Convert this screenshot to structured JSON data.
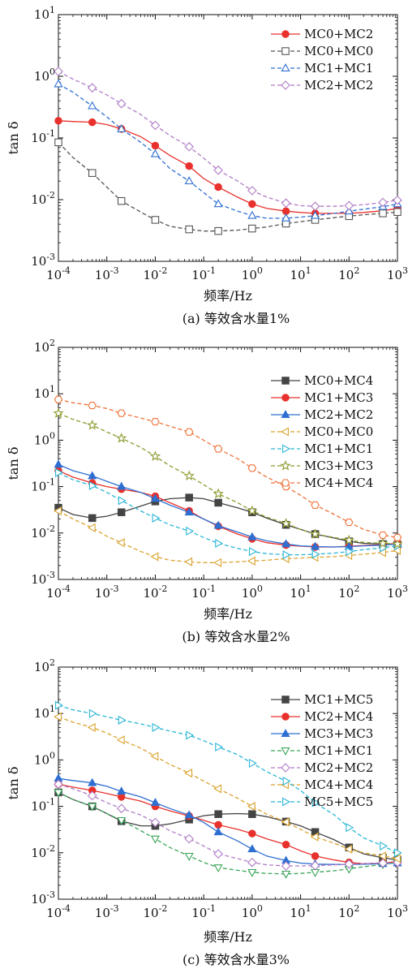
{
  "chart_data": [
    {
      "type": "line",
      "caption": "(a)  等效含水量1%",
      "xlabel": "频率/Hz",
      "ylabel": "tan δ",
      "xscale": "log",
      "yscale": "log",
      "xlim": [
        0.0001,
        1000
      ],
      "ylim": [
        0.001,
        10
      ],
      "legend_position": "top-right",
      "series": [
        {
          "name": "MC0+MC2",
          "color": "#e8312d",
          "dash": "solid",
          "marker": "circle-filled",
          "x": [
            0.0001,
            0.0002,
            0.0005,
            0.001,
            0.002,
            0.005,
            0.01,
            0.02,
            0.05,
            0.1,
            0.2,
            0.5,
            1,
            2,
            5,
            10,
            20,
            50,
            100,
            200,
            500,
            1000
          ],
          "y": [
            0.19,
            0.185,
            0.18,
            0.165,
            0.14,
            0.105,
            0.075,
            0.052,
            0.035,
            0.022,
            0.016,
            0.011,
            0.0085,
            0.0072,
            0.0065,
            0.0062,
            0.006,
            0.006,
            0.006,
            0.0062,
            0.0066,
            0.0072
          ]
        },
        {
          "name": "MC0+MC0",
          "color": "#555555",
          "dash": "dashed",
          "marker": "square-open",
          "x": [
            0.0001,
            0.0002,
            0.0005,
            0.001,
            0.002,
            0.005,
            0.01,
            0.02,
            0.05,
            0.1,
            0.2,
            0.5,
            1,
            2,
            5,
            10,
            20,
            50,
            100,
            200,
            500,
            1000
          ],
          "y": [
            0.085,
            0.048,
            0.027,
            0.016,
            0.0095,
            0.0063,
            0.0047,
            0.0037,
            0.0033,
            0.0031,
            0.0031,
            0.0032,
            0.0034,
            0.0036,
            0.0041,
            0.0044,
            0.0047,
            0.0051,
            0.0054,
            0.0057,
            0.006,
            0.0063
          ]
        },
        {
          "name": "MC1+MC1",
          "color": "#2e6fd1",
          "dash": "dashed",
          "marker": "triangle-open",
          "x": [
            0.0001,
            0.0002,
            0.0005,
            0.001,
            0.002,
            0.005,
            0.01,
            0.02,
            0.05,
            0.1,
            0.2,
            0.5,
            1,
            2,
            5,
            10,
            20,
            50,
            100,
            200,
            500,
            1000
          ],
          "y": [
            0.75,
            0.55,
            0.33,
            0.22,
            0.14,
            0.085,
            0.055,
            0.032,
            0.02,
            0.013,
            0.0085,
            0.0065,
            0.0055,
            0.005,
            0.005,
            0.0052,
            0.0055,
            0.006,
            0.0065,
            0.007,
            0.0077,
            0.0085
          ]
        },
        {
          "name": "MC2+MC2",
          "color": "#b07cc6",
          "dash": "dashed",
          "marker": "diamond-open",
          "x": [
            0.0001,
            0.0002,
            0.0005,
            0.001,
            0.002,
            0.005,
            0.01,
            0.02,
            0.05,
            0.1,
            0.2,
            0.5,
            1,
            2,
            5,
            10,
            20,
            50,
            100,
            200,
            500,
            1000
          ],
          "y": [
            1.2,
            0.9,
            0.65,
            0.5,
            0.36,
            0.24,
            0.16,
            0.11,
            0.072,
            0.047,
            0.03,
            0.02,
            0.014,
            0.011,
            0.0088,
            0.008,
            0.0078,
            0.0078,
            0.008,
            0.0083,
            0.009,
            0.0098
          ]
        }
      ]
    },
    {
      "type": "line",
      "caption": "(b)  等效含水量2%",
      "xlabel": "频率/Hz",
      "ylabel": "tan δ",
      "xscale": "log",
      "yscale": "log",
      "xlim": [
        0.0001,
        1000
      ],
      "ylim": [
        0.001,
        100
      ],
      "legend_position": "top-right",
      "series": [
        {
          "name": "MC0+MC4",
          "color": "#444444",
          "dash": "solid",
          "marker": "square-filled",
          "x": [
            0.0001,
            0.0002,
            0.0005,
            0.001,
            0.002,
            0.005,
            0.01,
            0.02,
            0.05,
            0.1,
            0.2,
            0.5,
            1,
            2,
            5,
            10,
            20,
            50,
            100,
            200,
            500,
            1000
          ],
          "y": [
            0.035,
            0.025,
            0.021,
            0.023,
            0.028,
            0.038,
            0.048,
            0.055,
            0.058,
            0.055,
            0.045,
            0.035,
            0.028,
            0.021,
            0.015,
            0.012,
            0.0095,
            0.0078,
            0.0066,
            0.006,
            0.0058,
            0.0057
          ]
        },
        {
          "name": "MC1+MC3",
          "color": "#e8312d",
          "dash": "solid",
          "marker": "circle-filled",
          "x": [
            0.0001,
            0.0002,
            0.0005,
            0.001,
            0.002,
            0.005,
            0.01,
            0.02,
            0.05,
            0.1,
            0.2,
            0.5,
            1,
            2,
            5,
            10,
            20,
            50,
            100,
            200,
            500,
            1000
          ],
          "y": [
            0.22,
            0.16,
            0.12,
            0.1,
            0.088,
            0.075,
            0.062,
            0.045,
            0.03,
            0.02,
            0.014,
            0.0095,
            0.0075,
            0.0062,
            0.0055,
            0.0052,
            0.005,
            0.005,
            0.0052,
            0.0054,
            0.0056,
            0.006
          ]
        },
        {
          "name": "MC2+MC2",
          "color": "#2e6fd1",
          "dash": "solid",
          "marker": "triangle-filled",
          "x": [
            0.0001,
            0.0002,
            0.0005,
            0.001,
            0.002,
            0.005,
            0.01,
            0.02,
            0.05,
            0.1,
            0.2,
            0.5,
            1,
            2,
            5,
            10,
            20,
            50,
            100,
            200,
            500,
            1000
          ],
          "y": [
            0.3,
            0.22,
            0.17,
            0.13,
            0.1,
            0.075,
            0.055,
            0.04,
            0.028,
            0.02,
            0.0145,
            0.0105,
            0.0082,
            0.0068,
            0.0058,
            0.0053,
            0.0051,
            0.005,
            0.0051,
            0.0053,
            0.0055,
            0.0058
          ]
        },
        {
          "name": "MC0+MC0",
          "color": "#d9a32e",
          "dash": "dashed",
          "marker": "triangle-left-open",
          "x": [
            0.0001,
            0.0002,
            0.0005,
            0.001,
            0.002,
            0.005,
            0.01,
            0.02,
            0.05,
            0.1,
            0.2,
            0.5,
            1,
            2,
            5,
            10,
            20,
            50,
            100,
            200,
            500,
            1000
          ],
          "y": [
            0.03,
            0.02,
            0.013,
            0.0085,
            0.0062,
            0.004,
            0.0031,
            0.0026,
            0.0024,
            0.0023,
            0.0023,
            0.0024,
            0.0025,
            0.0026,
            0.0028,
            0.0029,
            0.003,
            0.0031,
            0.0033,
            0.0035,
            0.0038,
            0.0042
          ]
        },
        {
          "name": "MC1+MC1",
          "color": "#2bb6d6",
          "dash": "dashed",
          "marker": "triangle-right-open",
          "x": [
            0.0001,
            0.0002,
            0.0005,
            0.001,
            0.002,
            0.005,
            0.01,
            0.02,
            0.05,
            0.1,
            0.2,
            0.5,
            1,
            2,
            5,
            10,
            20,
            50,
            100,
            200,
            500,
            1000
          ],
          "y": [
            0.2,
            0.14,
            0.105,
            0.075,
            0.05,
            0.03,
            0.021,
            0.015,
            0.011,
            0.008,
            0.006,
            0.0047,
            0.004,
            0.0036,
            0.0034,
            0.0034,
            0.0035,
            0.0037,
            0.004,
            0.0044,
            0.0048,
            0.0053
          ]
        },
        {
          "name": "MC3+MC3",
          "color": "#8f9a2f",
          "dash": "dashed",
          "marker": "star-open",
          "x": [
            0.0001,
            0.0002,
            0.0005,
            0.001,
            0.002,
            0.005,
            0.01,
            0.02,
            0.05,
            0.1,
            0.2,
            0.5,
            1,
            2,
            5,
            10,
            20,
            50,
            100,
            200,
            500,
            1000
          ],
          "y": [
            3.8,
            2.8,
            2.1,
            1.5,
            1.1,
            0.7,
            0.45,
            0.28,
            0.17,
            0.11,
            0.07,
            0.045,
            0.03,
            0.022,
            0.016,
            0.012,
            0.0095,
            0.008,
            0.007,
            0.0063,
            0.006,
            0.0058
          ]
        },
        {
          "name": "MC4+MC4",
          "color": "#ee7238",
          "dash": "dashed",
          "marker": "hexagon-open",
          "x": [
            0.0001,
            0.0002,
            0.0005,
            0.001,
            0.002,
            0.005,
            0.01,
            0.02,
            0.05,
            0.1,
            0.2,
            0.5,
            1,
            2,
            5,
            10,
            20,
            50,
            100,
            200,
            500,
            1000
          ],
          "y": [
            7.5,
            6.4,
            5.6,
            4.8,
            3.8,
            3.0,
            2.5,
            2.0,
            1.5,
            1.0,
            0.65,
            0.4,
            0.25,
            0.16,
            0.1,
            0.065,
            0.04,
            0.025,
            0.017,
            0.012,
            0.009,
            0.008
          ]
        }
      ]
    },
    {
      "type": "line",
      "caption": "(c)  等效含水量3%",
      "xlabel": "频率/Hz",
      "ylabel": "tan δ",
      "xscale": "log",
      "yscale": "log",
      "xlim": [
        0.0001,
        1000
      ],
      "ylim": [
        0.001,
        100
      ],
      "legend_position": "top-right",
      "series": [
        {
          "name": "MC1+MC5",
          "color": "#444444",
          "dash": "solid",
          "marker": "square-filled",
          "x": [
            0.0001,
            0.0002,
            0.0005,
            0.001,
            0.002,
            0.005,
            0.01,
            0.02,
            0.05,
            0.1,
            0.2,
            0.5,
            1,
            2,
            5,
            10,
            20,
            50,
            100,
            200,
            500,
            1000
          ],
          "y": [
            0.2,
            0.14,
            0.1,
            0.07,
            0.048,
            0.038,
            0.038,
            0.042,
            0.052,
            0.063,
            0.068,
            0.07,
            0.068,
            0.06,
            0.047,
            0.038,
            0.028,
            0.019,
            0.013,
            0.0095,
            0.0078,
            0.007
          ]
        },
        {
          "name": "MC2+MC4",
          "color": "#e8312d",
          "dash": "solid",
          "marker": "circle-filled",
          "x": [
            0.0001,
            0.0002,
            0.0005,
            0.001,
            0.002,
            0.005,
            0.01,
            0.02,
            0.05,
            0.1,
            0.2,
            0.5,
            1,
            2,
            5,
            10,
            20,
            50,
            100,
            200,
            500,
            1000
          ],
          "y": [
            0.3,
            0.26,
            0.22,
            0.19,
            0.16,
            0.13,
            0.1,
            0.08,
            0.062,
            0.05,
            0.04,
            0.032,
            0.026,
            0.02,
            0.015,
            0.011,
            0.0085,
            0.007,
            0.0062,
            0.0058,
            0.006,
            0.0065
          ]
        },
        {
          "name": "MC3+MC3",
          "color": "#2e6fd1",
          "dash": "solid",
          "marker": "triangle-filled",
          "x": [
            0.0001,
            0.0002,
            0.0005,
            0.001,
            0.002,
            0.005,
            0.01,
            0.02,
            0.05,
            0.1,
            0.2,
            0.5,
            1,
            2,
            5,
            10,
            20,
            50,
            100,
            200,
            500,
            1000
          ],
          "y": [
            0.4,
            0.36,
            0.32,
            0.27,
            0.21,
            0.16,
            0.12,
            0.09,
            0.065,
            0.045,
            0.028,
            0.018,
            0.012,
            0.0085,
            0.0068,
            0.006,
            0.0057,
            0.0056,
            0.0056,
            0.0057,
            0.0058,
            0.006
          ]
        },
        {
          "name": "MC1+MC1",
          "color": "#3aa55a",
          "dash": "dashed",
          "marker": "triangle-down-open",
          "x": [
            0.0001,
            0.0002,
            0.0005,
            0.001,
            0.002,
            0.005,
            0.01,
            0.02,
            0.05,
            0.1,
            0.2,
            0.5,
            1,
            2,
            5,
            10,
            20,
            50,
            100,
            200,
            500,
            1000
          ],
          "y": [
            0.2,
            0.14,
            0.1,
            0.07,
            0.05,
            0.03,
            0.02,
            0.013,
            0.0085,
            0.0062,
            0.0048,
            0.0042,
            0.0038,
            0.0036,
            0.0035,
            0.0036,
            0.0038,
            0.0041,
            0.0045,
            0.005,
            0.0056,
            0.0062
          ]
        },
        {
          "name": "MC2+MC2",
          "color": "#b07cc6",
          "dash": "dashed",
          "marker": "diamond-open",
          "x": [
            0.0001,
            0.0002,
            0.0005,
            0.001,
            0.002,
            0.005,
            0.01,
            0.02,
            0.05,
            0.1,
            0.2,
            0.5,
            1,
            2,
            5,
            10,
            20,
            50,
            100,
            200,
            500,
            1000
          ],
          "y": [
            0.3,
            0.24,
            0.17,
            0.12,
            0.09,
            0.065,
            0.045,
            0.03,
            0.02,
            0.014,
            0.0095,
            0.0075,
            0.0062,
            0.0055,
            0.0052,
            0.0052,
            0.0053,
            0.0055,
            0.0057,
            0.0058,
            0.006,
            0.0062
          ]
        },
        {
          "name": "MC4+MC4",
          "color": "#d9a32e",
          "dash": "dashed",
          "marker": "triangle-left-open",
          "x": [
            0.0001,
            0.0002,
            0.0005,
            0.001,
            0.002,
            0.005,
            0.01,
            0.02,
            0.05,
            0.1,
            0.2,
            0.5,
            1,
            2,
            5,
            10,
            20,
            50,
            100,
            200,
            500,
            1000
          ],
          "y": [
            8.5,
            6.5,
            5.0,
            3.8,
            2.7,
            1.8,
            1.2,
            0.8,
            0.52,
            0.35,
            0.24,
            0.15,
            0.1,
            0.068,
            0.046,
            0.032,
            0.022,
            0.016,
            0.012,
            0.01,
            0.0085,
            0.0075
          ]
        },
        {
          "name": "MC5+MC5",
          "color": "#2bb6d6",
          "dash": "dashed",
          "marker": "triangle-right-open",
          "x": [
            0.0001,
            0.0002,
            0.0005,
            0.001,
            0.002,
            0.005,
            0.01,
            0.02,
            0.05,
            0.1,
            0.2,
            0.5,
            1,
            2,
            5,
            10,
            20,
            50,
            100,
            200,
            500,
            1000
          ],
          "y": [
            15,
            12,
            10,
            8.5,
            7.2,
            6.0,
            5.0,
            4.2,
            3.4,
            2.6,
            1.9,
            1.3,
            0.85,
            0.56,
            0.35,
            0.22,
            0.12,
            0.065,
            0.035,
            0.021,
            0.014,
            0.01
          ]
        }
      ]
    }
  ]
}
